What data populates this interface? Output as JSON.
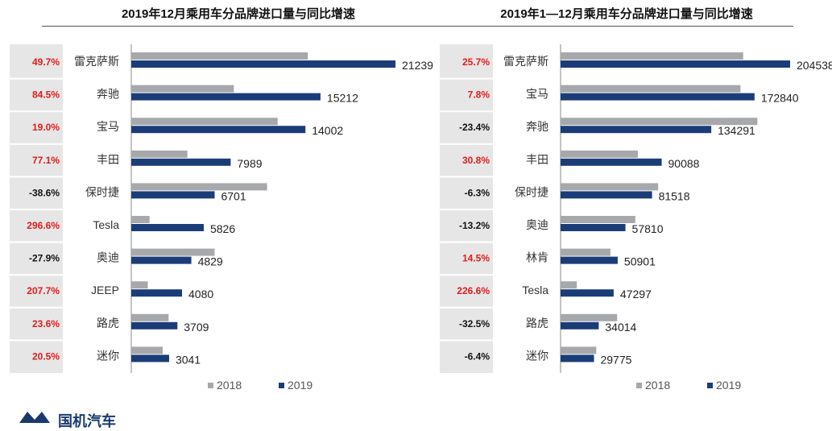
{
  "colors": {
    "y2018": "#a6a8ab",
    "y2019": "#1a3d78",
    "positive": "#e31b1b",
    "negative": "#111111",
    "panel": "#e6e6e6"
  },
  "logo": {
    "text": "国机汽车"
  },
  "chart_data": [
    {
      "type": "bar",
      "title": "2019年12月乘用车分品牌进口量与同比增速",
      "categories": [
        "雷克萨斯",
        "奔驰",
        "宝马",
        "丰田",
        "保时捷",
        "Tesla",
        "奥迪",
        "JEEP",
        "路虎",
        "迷你"
      ],
      "growth": [
        "49.7%",
        "84.5%",
        "19.0%",
        "77.1%",
        "-38.6%",
        "296.6%",
        "-27.9%",
        "207.7%",
        "23.6%",
        "20.5%"
      ],
      "series": [
        {
          "name": "2018",
          "values": [
            14190,
            8244,
            11767,
            4510,
            10917,
            1469,
            6697,
            1326,
            3001,
            2523
          ]
        },
        {
          "name": "2019",
          "values": [
            21239,
            15212,
            14002,
            7989,
            6701,
            5826,
            4829,
            4080,
            3709,
            3041
          ]
        }
      ],
      "xlim": [
        0,
        21239
      ],
      "legend": [
        "2018",
        "2019"
      ]
    },
    {
      "type": "bar",
      "title": "2019年1—12月乘用车分品牌进口量与同比增速",
      "categories": [
        "雷克萨斯",
        "宝马",
        "奔驰",
        "丰田",
        "保时捷",
        "奥迪",
        "林肯",
        "Tesla",
        "路虎",
        "迷你"
      ],
      "growth": [
        "25.7%",
        "7.8%",
        "-23.4%",
        "30.8%",
        "-6.3%",
        "-13.2%",
        "14.5%",
        "226.6%",
        "-32.5%",
        "-6.4%"
      ],
      "series": [
        {
          "name": "2018",
          "values": [
            162719,
            160334,
            175367,
            68844,
            87000,
            66600,
            44450,
            14480,
            50391,
            31811
          ]
        },
        {
          "name": "2019",
          "values": [
            204538,
            172840,
            134291,
            90088,
            81518,
            57810,
            50901,
            47297,
            34014,
            29775
          ]
        }
      ],
      "xlim": [
        0,
        204538
      ],
      "legend": [
        "2018",
        "2019"
      ]
    }
  ]
}
